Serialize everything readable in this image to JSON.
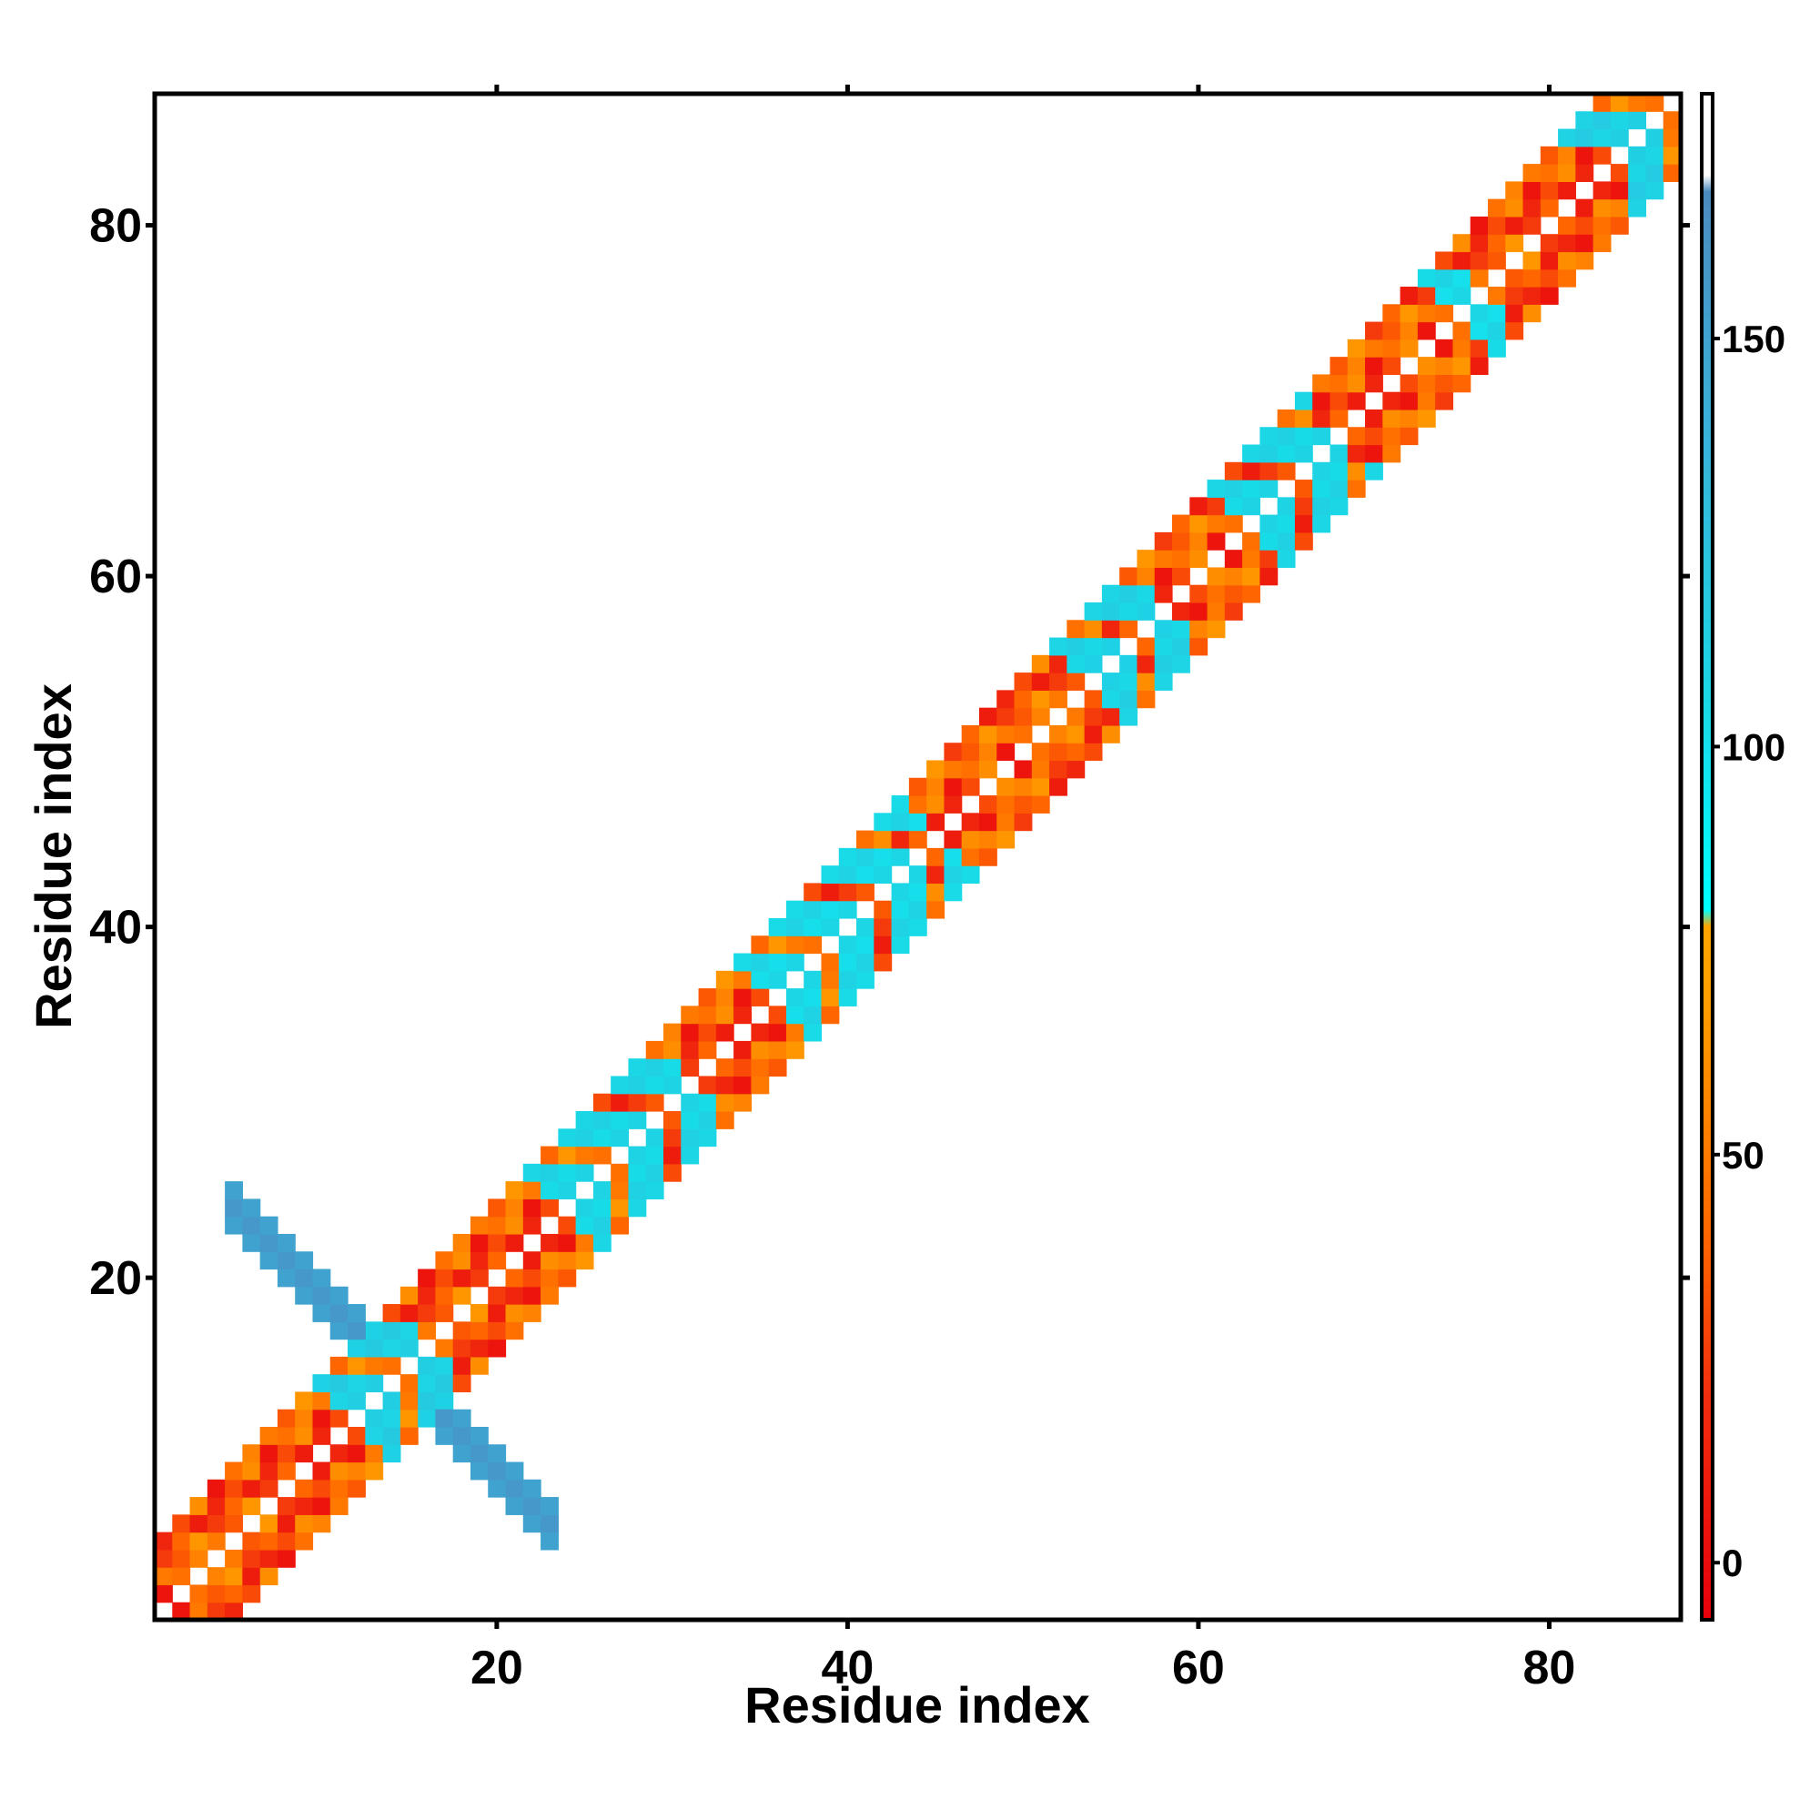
{
  "chart_data": {
    "type": "heatmap",
    "title": "",
    "xlabel": "Residue index",
    "ylabel": "Residue index",
    "xlim": [
      0.5,
      87.5
    ],
    "ylim": [
      0.5,
      87.5
    ],
    "x_ticks": [
      20,
      40,
      60,
      80
    ],
    "y_ticks": [
      20,
      40,
      60,
      80
    ],
    "x_tick_labels": [
      "20",
      "40",
      "60",
      "80"
    ],
    "y_tick_labels": [
      "20",
      "40",
      "60",
      "80"
    ],
    "colorbar": {
      "range": [
        -7,
        180
      ],
      "ticks": [
        0,
        50,
        100,
        150
      ],
      "tick_labels": [
        "0",
        "50",
        "100",
        "150"
      ],
      "stops": [
        {
          "value": -7,
          "color": "#e8000b"
        },
        {
          "value": 20,
          "color": "#f22d0e"
        },
        {
          "value": 40,
          "color": "#ff6600"
        },
        {
          "value": 70,
          "color": "#ffa000"
        },
        {
          "value": 78,
          "color": "#ffa500"
        },
        {
          "value": 80,
          "color": "#00ffff"
        },
        {
          "value": 105,
          "color": "#1ad8e6"
        },
        {
          "value": 140,
          "color": "#3ab0d8"
        },
        {
          "value": 168,
          "color": "#4b8bc0"
        },
        {
          "value": 170,
          "color": "#ffffff"
        },
        {
          "value": 180,
          "color": "#ffffff"
        }
      ]
    },
    "diagonal_band": {
      "offsets": [
        1,
        2,
        3,
        4
      ],
      "residue_range": [
        1,
        87
      ],
      "value_pattern": [
        10,
        45,
        25,
        60,
        35,
        15,
        55,
        40,
        5,
        65,
        30,
        50
      ]
    },
    "cyan_segments": [
      {
        "start": 12,
        "end": 16,
        "value": 105
      },
      {
        "start": 24,
        "end": 31,
        "value": 100
      },
      {
        "start": 36,
        "end": 45,
        "value": 98
      },
      {
        "start": 54,
        "end": 58,
        "value": 102
      },
      {
        "start": 63,
        "end": 68,
        "value": 100
      },
      {
        "start": 75,
        "end": 76,
        "value": 97
      },
      {
        "start": 83,
        "end": 87,
        "value": 104
      }
    ],
    "antidiagonal_band": {
      "center_sum": 29,
      "x_range": [
        5,
        23
      ],
      "width": 3,
      "values": [
        125,
        145,
        150,
        152,
        155,
        158
      ]
    }
  }
}
